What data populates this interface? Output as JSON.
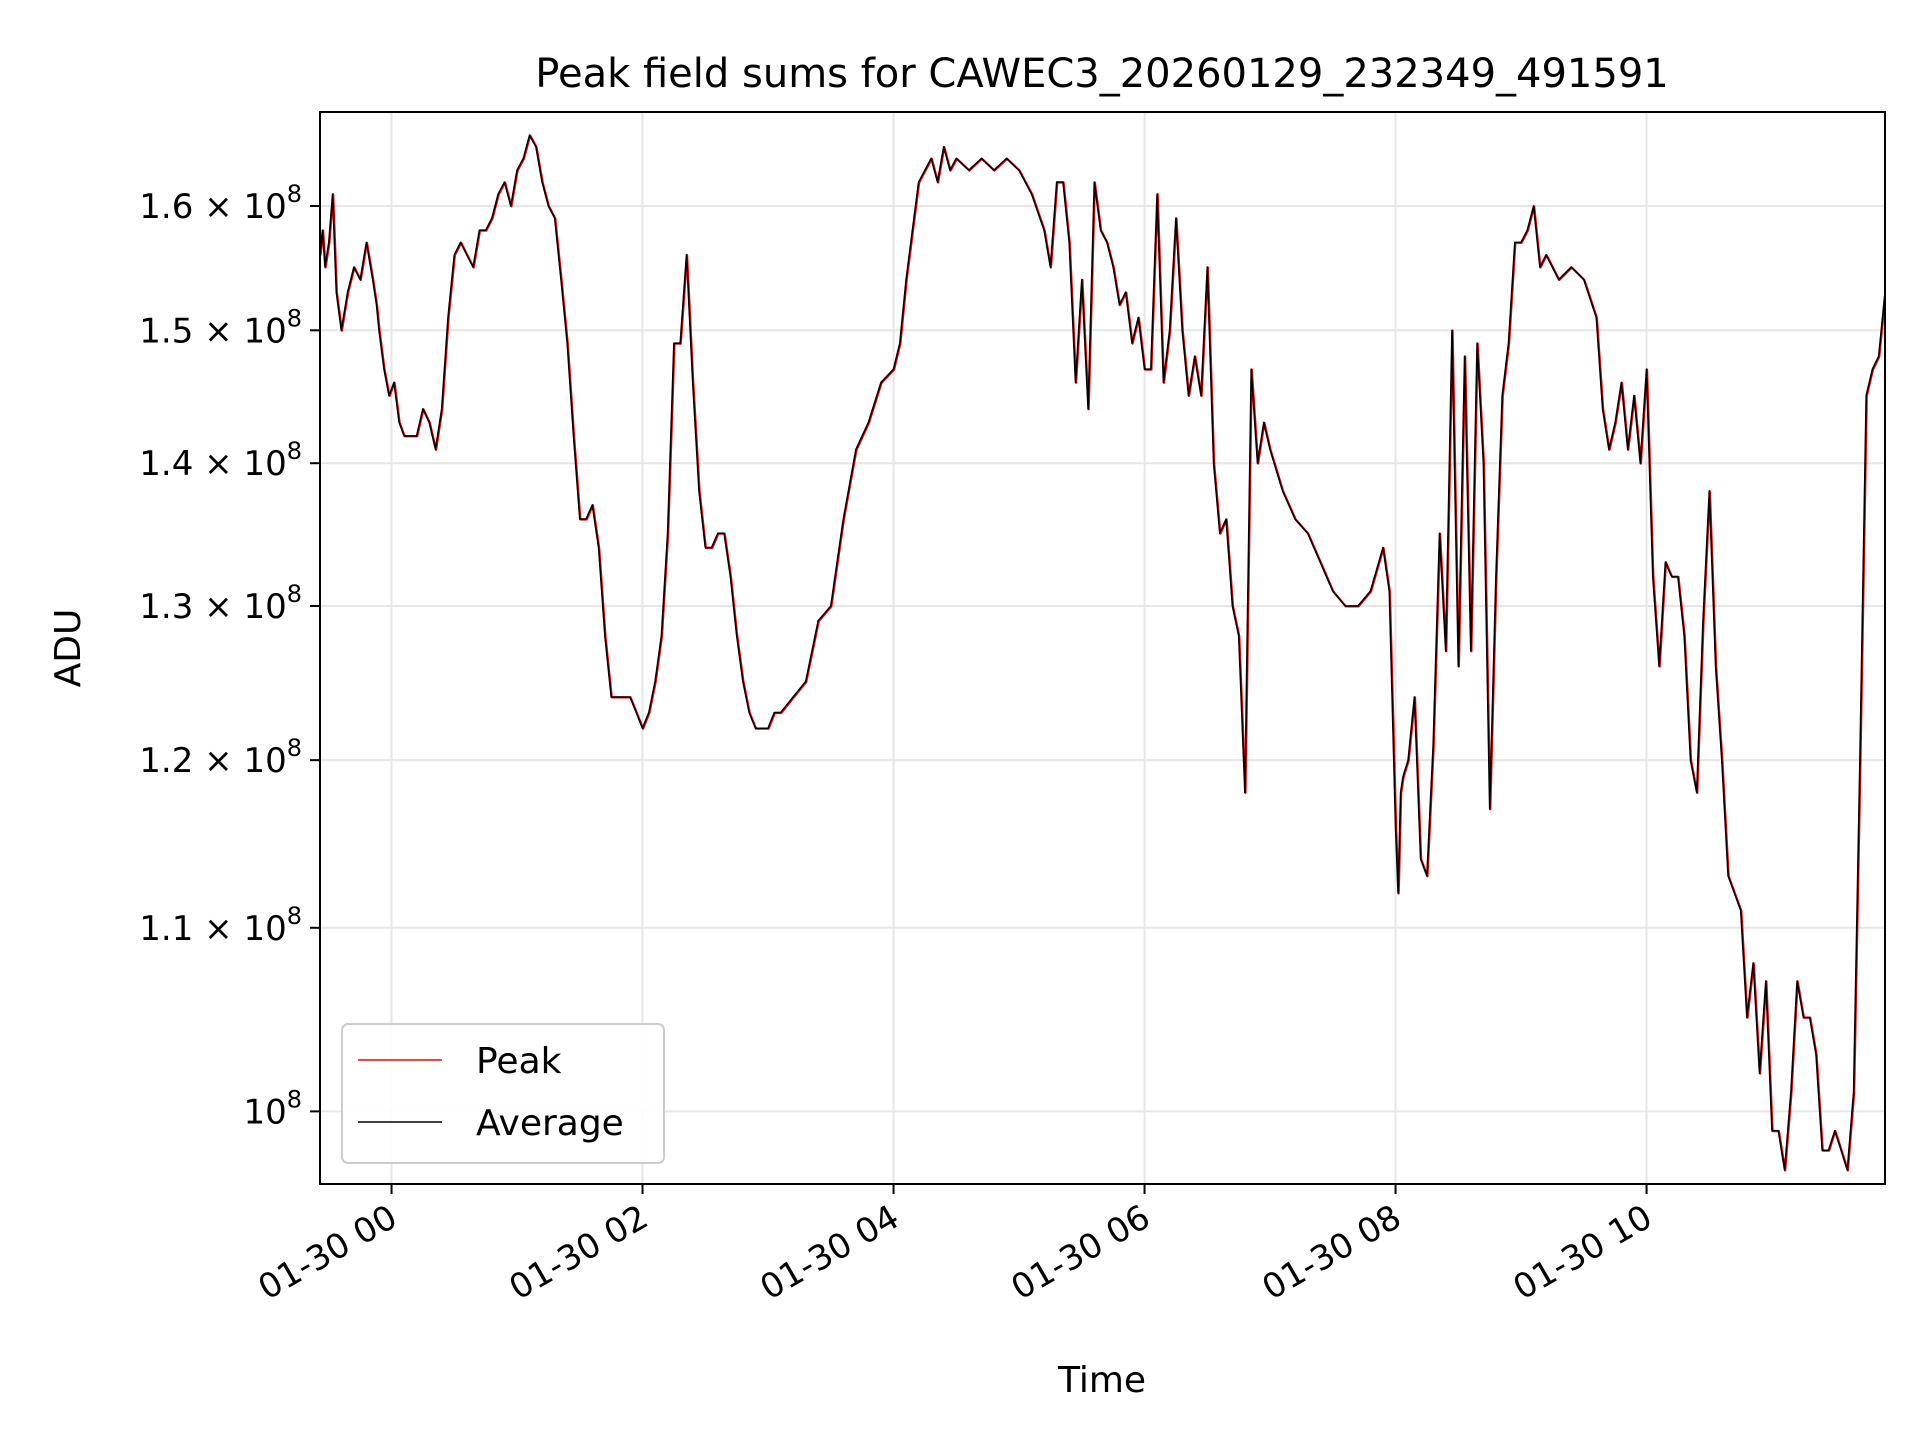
{
  "chart_data": {
    "type": "line",
    "title": "Peak field sums for CAWEC3_20260129_232349_491591",
    "xlabel": "Time",
    "ylabel": "ADU",
    "y_scale": "log",
    "grid": true,
    "legend_position": "lower-left",
    "x_unit": "hours since 01-30 00:00",
    "xlim": [
      -0.57,
      11.9
    ],
    "ylim": [
      96300000,
      168000000
    ],
    "x_ticks": [
      {
        "value": 0,
        "label": "01-30 00"
      },
      {
        "value": 2,
        "label": "01-30 02"
      },
      {
        "value": 4,
        "label": "01-30 04"
      },
      {
        "value": 6,
        "label": "01-30 06"
      },
      {
        "value": 8,
        "label": "01-30 08"
      },
      {
        "value": 10,
        "label": "01-30 10"
      }
    ],
    "y_ticks": [
      {
        "value": 100000000,
        "mantissa": "",
        "exp": "8"
      },
      {
        "value": 110000000,
        "mantissa": "1.1",
        "exp": "8"
      },
      {
        "value": 120000000,
        "mantissa": "1.2",
        "exp": "8"
      },
      {
        "value": 130000000,
        "mantissa": "1.3",
        "exp": "8"
      },
      {
        "value": 140000000,
        "mantissa": "1.4",
        "exp": "8"
      },
      {
        "value": 150000000,
        "mantissa": "1.5",
        "exp": "8"
      },
      {
        "value": 160000000,
        "mantissa": "1.6",
        "exp": "8"
      }
    ],
    "series": [
      {
        "name": "Peak",
        "color": "#ff0000"
      },
      {
        "name": "Average",
        "color": "#000000"
      }
    ],
    "x": [
      -0.57,
      -0.55,
      -0.53,
      -0.5,
      -0.47,
      -0.44,
      -0.4,
      -0.35,
      -0.3,
      -0.25,
      -0.2,
      -0.15,
      -0.12,
      -0.1,
      -0.06,
      -0.02,
      0.02,
      0.06,
      0.1,
      0.15,
      0.2,
      0.25,
      0.3,
      0.35,
      0.4,
      0.45,
      0.5,
      0.55,
      0.6,
      0.65,
      0.7,
      0.75,
      0.8,
      0.85,
      0.9,
      0.95,
      1.0,
      1.05,
      1.1,
      1.15,
      1.2,
      1.25,
      1.3,
      1.35,
      1.4,
      1.45,
      1.5,
      1.55,
      1.6,
      1.65,
      1.7,
      1.75,
      1.8,
      1.85,
      1.9,
      1.95,
      2.0,
      2.05,
      2.1,
      2.15,
      2.2,
      2.25,
      2.3,
      2.35,
      2.4,
      2.45,
      2.5,
      2.55,
      2.6,
      2.65,
      2.7,
      2.75,
      2.8,
      2.85,
      2.9,
      2.95,
      3.0,
      3.05,
      3.1,
      3.2,
      3.3,
      3.4,
      3.5,
      3.6,
      3.7,
      3.8,
      3.9,
      4.0,
      4.05,
      4.1,
      4.15,
      4.2,
      4.25,
      4.3,
      4.35,
      4.4,
      4.45,
      4.5,
      4.6,
      4.7,
      4.8,
      4.9,
      5.0,
      5.1,
      5.2,
      5.25,
      5.3,
      5.35,
      5.4,
      5.45,
      5.5,
      5.55,
      5.6,
      5.65,
      5.7,
      5.75,
      5.8,
      5.85,
      5.9,
      5.95,
      6.0,
      6.05,
      6.1,
      6.15,
      6.2,
      6.25,
      6.3,
      6.35,
      6.4,
      6.45,
      6.5,
      6.55,
      6.6,
      6.65,
      6.7,
      6.75,
      6.8,
      6.85,
      6.9,
      6.95,
      7.0,
      7.1,
      7.2,
      7.3,
      7.4,
      7.5,
      7.6,
      7.7,
      7.8,
      7.9,
      7.95,
      8.0,
      8.02,
      8.04,
      8.06,
      8.1,
      8.15,
      8.2,
      8.25,
      8.3,
      8.35,
      8.4,
      8.45,
      8.5,
      8.55,
      8.6,
      8.65,
      8.7,
      8.75,
      8.8,
      8.85,
      8.9,
      8.95,
      9.0,
      9.05,
      9.1,
      9.15,
      9.2,
      9.3,
      9.4,
      9.5,
      9.6,
      9.65,
      9.7,
      9.75,
      9.8,
      9.85,
      9.9,
      9.95,
      10.0,
      10.05,
      10.1,
      10.15,
      10.2,
      10.25,
      10.3,
      10.35,
      10.4,
      10.45,
      10.5,
      10.55,
      10.6,
      10.65,
      10.7,
      10.75,
      10.8,
      10.85,
      10.9,
      10.95,
      11.0,
      11.05,
      11.1,
      11.15,
      11.2,
      11.25,
      11.3,
      11.35,
      11.4,
      11.45,
      11.5,
      11.55,
      11.6,
      11.65,
      11.7,
      11.75,
      11.8,
      11.85,
      11.9
    ],
    "values": [
      156000000,
      158000000,
      155000000,
      157000000,
      161000000,
      153000000,
      150000000,
      153000000,
      155000000,
      154000000,
      157000000,
      154000000,
      152000000,
      150000000,
      147000000,
      145000000,
      146000000,
      143000000,
      142000000,
      142000000,
      142000000,
      144000000,
      143000000,
      141000000,
      144000000,
      151000000,
      156000000,
      157000000,
      156000000,
      155000000,
      158000000,
      158000000,
      159000000,
      161000000,
      162000000,
      160000000,
      163000000,
      164000000,
      166000000,
      165000000,
      162000000,
      160000000,
      159000000,
      154000000,
      149000000,
      142000000,
      136000000,
      136000000,
      137000000,
      134000000,
      128000000,
      124000000,
      124000000,
      124000000,
      124000000,
      123000000,
      122000000,
      123000000,
      125000000,
      128000000,
      135000000,
      149000000,
      149000000,
      156000000,
      146000000,
      138000000,
      134000000,
      134000000,
      135000000,
      135000000,
      132000000,
      128000000,
      125000000,
      123000000,
      122000000,
      122000000,
      122000000,
      123000000,
      123000000,
      124000000,
      125000000,
      129000000,
      130000000,
      136000000,
      141000000,
      143000000,
      146000000,
      147000000,
      149000000,
      154000000,
      158000000,
      162000000,
      163000000,
      164000000,
      162000000,
      165000000,
      163000000,
      164000000,
      163000000,
      164000000,
      163000000,
      164000000,
      163000000,
      161000000,
      158000000,
      155000000,
      162000000,
      162000000,
      157000000,
      146000000,
      154000000,
      144000000,
      162000000,
      158000000,
      157000000,
      155000000,
      152000000,
      153000000,
      149000000,
      151000000,
      147000000,
      147000000,
      161000000,
      146000000,
      150000000,
      159000000,
      150000000,
      145000000,
      148000000,
      145000000,
      155000000,
      140000000,
      135000000,
      136000000,
      130000000,
      128000000,
      118000000,
      147000000,
      140000000,
      143000000,
      141000000,
      138000000,
      136000000,
      135000000,
      133000000,
      131000000,
      130000000,
      130000000,
      131000000,
      134000000,
      131000000,
      116000000,
      112000000,
      118000000,
      119000000,
      120000000,
      124000000,
      114000000,
      113000000,
      121000000,
      135000000,
      127000000,
      150000000,
      126000000,
      148000000,
      127000000,
      149000000,
      140000000,
      117000000,
      132000000,
      145000000,
      149000000,
      157000000,
      157000000,
      158000000,
      160000000,
      155000000,
      156000000,
      154000000,
      155000000,
      154000000,
      151000000,
      144000000,
      141000000,
      143000000,
      146000000,
      141000000,
      145000000,
      140000000,
      147000000,
      132000000,
      126000000,
      133000000,
      132000000,
      132000000,
      128000000,
      120000000,
      118000000,
      129000000,
      138000000,
      126000000,
      120000000,
      113000000,
      112000000,
      111000000,
      105000000,
      108000000,
      102000000,
      107000000,
      99000000,
      99000000,
      97000000,
      101000000,
      107000000,
      105000000,
      105000000,
      103000000,
      98000000,
      98000000,
      99000000,
      98000000,
      97000000,
      101000000,
      120000000,
      145000000,
      147000000,
      148000000,
      153000000
    ]
  }
}
